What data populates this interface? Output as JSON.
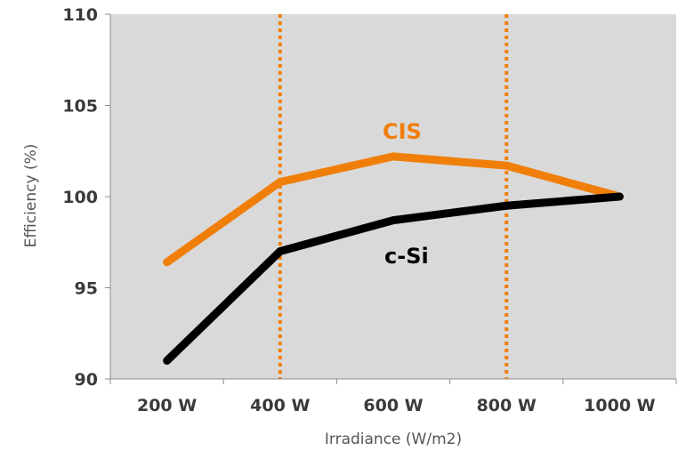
{
  "chart_data": {
    "type": "line",
    "xlabel": "Irradiance (W/m2)",
    "ylabel": "Efficiency (%)",
    "categories": [
      "200 W",
      "400 W",
      "600 W",
      "800 W",
      "1000 W"
    ],
    "ylim": [
      90,
      110
    ],
    "yticks": [
      90,
      95,
      100,
      105,
      110
    ],
    "grid": false,
    "plot_background": "#d9d9d9",
    "series": [
      {
        "name": "CIS",
        "color": "#f07f0a",
        "values": [
          96.4,
          100.8,
          102.2,
          101.7,
          100.0
        ]
      },
      {
        "name": "c-Si",
        "color": "#000000",
        "values": [
          91.0,
          97.0,
          98.7,
          99.5,
          100.0
        ]
      }
    ],
    "reference_lines": {
      "categories": [
        "400 W",
        "800 W"
      ],
      "color": "#f07f0a",
      "style": "dotted"
    }
  }
}
